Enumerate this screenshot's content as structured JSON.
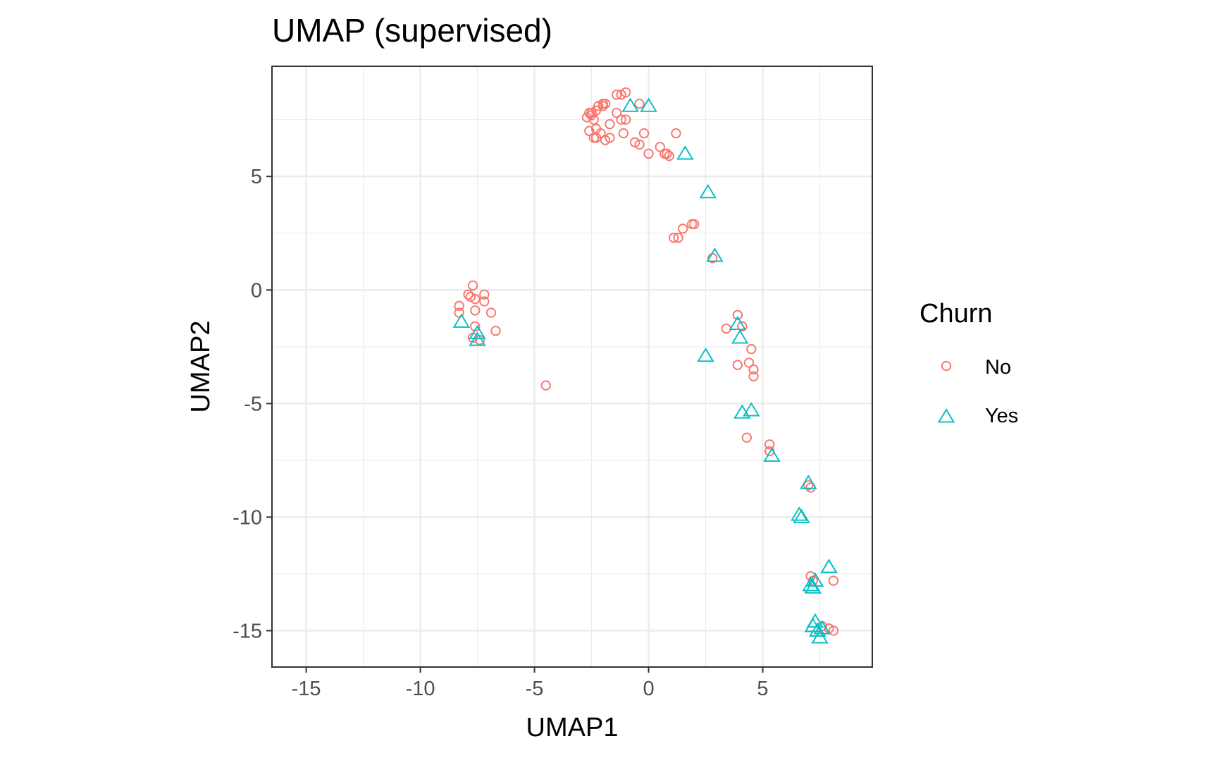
{
  "chart_data": {
    "type": "scatter",
    "title": "UMAP (supervised)",
    "xlabel": "UMAP1",
    "ylabel": "UMAP2",
    "xlim": [
      -16.5,
      9.8
    ],
    "ylim": [
      -16.6,
      9.85
    ],
    "x_ticks": [
      -15,
      -10,
      -5,
      0,
      5
    ],
    "y_ticks": [
      5,
      0,
      -5,
      -10,
      -15
    ],
    "x_tick_labels": [
      "-15",
      "-10",
      "-5",
      "0",
      "5"
    ],
    "y_tick_labels": [
      "5",
      "0",
      "-5",
      "-10",
      "-15"
    ],
    "grid": true,
    "legend": {
      "title": "Churn",
      "position": "right"
    },
    "series": [
      {
        "name": "No",
        "marker": "circle",
        "color": "#F8766D",
        "points": [
          [
            -2.7,
            7.6
          ],
          [
            -2.6,
            7.8
          ],
          [
            -2.5,
            7.7
          ],
          [
            -2.3,
            7.9
          ],
          [
            -2.2,
            8.1
          ],
          [
            -2.0,
            8.2
          ],
          [
            -1.9,
            8.2
          ],
          [
            -1.4,
            8.6
          ],
          [
            -1.2,
            8.6
          ],
          [
            -1.0,
            8.7
          ],
          [
            -0.4,
            8.2
          ],
          [
            -2.4,
            7.5
          ],
          [
            -2.3,
            7.1
          ],
          [
            -2.6,
            7.0
          ],
          [
            -2.4,
            6.7
          ],
          [
            -2.3,
            6.7
          ],
          [
            -2.1,
            6.9
          ],
          [
            -1.9,
            6.6
          ],
          [
            -1.7,
            6.7
          ],
          [
            -1.4,
            7.8
          ],
          [
            -1.2,
            7.5
          ],
          [
            -1.0,
            7.5
          ],
          [
            -1.1,
            6.9
          ],
          [
            -0.6,
            6.5
          ],
          [
            -0.4,
            6.4
          ],
          [
            -0.2,
            6.9
          ],
          [
            -1.7,
            7.3
          ],
          [
            0.0,
            6.0
          ],
          [
            0.5,
            6.3
          ],
          [
            0.7,
            6.0
          ],
          [
            0.8,
            6.0
          ],
          [
            0.9,
            5.9
          ],
          [
            1.2,
            6.9
          ],
          [
            -2.0,
            8.1
          ],
          [
            -2.5,
            7.8
          ],
          [
            1.1,
            2.3
          ],
          [
            1.3,
            2.3
          ],
          [
            1.5,
            2.7
          ],
          [
            1.9,
            2.9
          ],
          [
            2.0,
            2.9
          ],
          [
            2.8,
            1.4
          ],
          [
            -7.7,
            0.2
          ],
          [
            -7.9,
            -0.2
          ],
          [
            -7.8,
            -0.3
          ],
          [
            -7.6,
            -0.4
          ],
          [
            -7.2,
            -0.2
          ],
          [
            -7.2,
            -0.5
          ],
          [
            -8.3,
            -0.7
          ],
          [
            -7.6,
            -0.9
          ],
          [
            -8.3,
            -1.0
          ],
          [
            -6.9,
            -1.0
          ],
          [
            -7.6,
            -1.6
          ],
          [
            -6.7,
            -1.8
          ],
          [
            -7.7,
            -2.1
          ],
          [
            -7.4,
            -2.2
          ],
          [
            -4.5,
            -4.2
          ],
          [
            3.4,
            -1.7
          ],
          [
            3.9,
            -1.1
          ],
          [
            4.1,
            -1.6
          ],
          [
            4.5,
            -2.6
          ],
          [
            3.9,
            -3.3
          ],
          [
            4.4,
            -3.2
          ],
          [
            4.6,
            -3.5
          ],
          [
            4.6,
            -3.8
          ],
          [
            4.3,
            -6.5
          ],
          [
            5.3,
            -6.8
          ],
          [
            5.3,
            -7.1
          ],
          [
            7.0,
            -8.6
          ],
          [
            7.1,
            -8.7
          ],
          [
            7.1,
            -12.6
          ],
          [
            7.2,
            -12.8
          ],
          [
            8.1,
            -12.8
          ],
          [
            7.6,
            -14.8
          ],
          [
            7.9,
            -14.9
          ],
          [
            8.1,
            -15.0
          ]
        ]
      },
      {
        "name": "Yes",
        "marker": "triangle",
        "color": "#00BFC4",
        "points": [
          [
            -0.8,
            8.1
          ],
          [
            0.0,
            8.1
          ],
          [
            1.6,
            6.0
          ],
          [
            2.6,
            4.3
          ],
          [
            2.9,
            1.5
          ],
          [
            -8.2,
            -1.4
          ],
          [
            -7.5,
            -1.9
          ],
          [
            -7.5,
            -2.2
          ],
          [
            2.5,
            -2.9
          ],
          [
            3.9,
            -1.5
          ],
          [
            4.0,
            -2.1
          ],
          [
            4.1,
            -5.4
          ],
          [
            4.5,
            -5.3
          ],
          [
            5.4,
            -7.3
          ],
          [
            7.0,
            -8.5
          ],
          [
            6.6,
            -9.9
          ],
          [
            6.7,
            -10.0
          ],
          [
            7.9,
            -12.2
          ],
          [
            7.9,
            -12.2
          ],
          [
            7.3,
            -12.8
          ],
          [
            7.1,
            -13.0
          ],
          [
            7.2,
            -13.1
          ],
          [
            7.3,
            -14.6
          ],
          [
            7.2,
            -14.8
          ],
          [
            7.4,
            -15.0
          ],
          [
            7.6,
            -14.9
          ],
          [
            7.5,
            -15.3
          ]
        ]
      }
    ]
  }
}
